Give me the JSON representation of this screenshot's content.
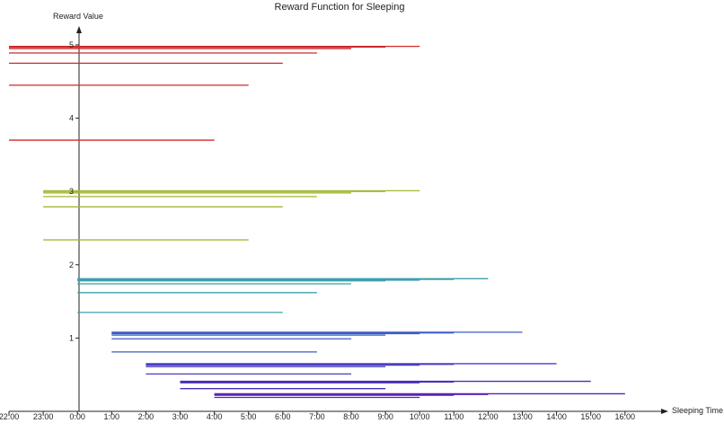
{
  "chart_data": {
    "type": "line",
    "title": "Reward Function for Sleeping",
    "xlabel": "Sleeping Time",
    "ylabel": "Reward Value",
    "xlim": [
      "22:00",
      "16:00"
    ],
    "ylim": [
      0,
      5
    ],
    "x_ticks": [
      "22:00",
      "23:00",
      "0:00",
      "1:00",
      "2:00",
      "3:00",
      "4:00",
      "5:00",
      "6:00",
      "7:00",
      "8:00",
      "9:00",
      "10:00",
      "11:00",
      "12:00",
      "13:00",
      "14:00",
      "15:00",
      "16:00"
    ],
    "y_ticks": [
      "1",
      "2",
      "3",
      "4",
      "5"
    ],
    "grid": false,
    "segment_groups": [
      {
        "start": "22:00",
        "color": "#cc2a2a",
        "segments": [
          {
            "end": "10:00",
            "value": 4.98
          },
          {
            "end": "9:00",
            "value": 4.97
          },
          {
            "end": "8:00",
            "value": 4.95
          },
          {
            "end": "7:00",
            "value": 4.89
          },
          {
            "end": "6:00",
            "value": 4.75
          },
          {
            "end": "5:00",
            "value": 4.45
          },
          {
            "end": "4:00",
            "value": 3.7
          }
        ]
      },
      {
        "start": "23:00",
        "color": "#a6b732",
        "segments": [
          {
            "end": "10:00",
            "value": 3.01
          },
          {
            "end": "9:00",
            "value": 3.0
          },
          {
            "end": "8:00",
            "value": 2.98
          },
          {
            "end": "7:00",
            "value": 2.93
          },
          {
            "end": "6:00",
            "value": 2.79
          },
          {
            "end": "5:00",
            "value": 2.34
          }
        ]
      },
      {
        "start": "0:00",
        "color": "#3f9fb0",
        "segments": [
          {
            "end": "12:00",
            "value": 1.81
          },
          {
            "end": "11:00",
            "value": 1.8
          },
          {
            "end": "10:00",
            "value": 1.79
          },
          {
            "end": "9:00",
            "value": 1.78
          },
          {
            "end": "8:00",
            "value": 1.74
          },
          {
            "end": "7:00",
            "value": 1.62
          },
          {
            "end": "6:00",
            "value": 1.35
          }
        ]
      },
      {
        "start": "1:00",
        "color": "#3b5cc4",
        "segments": [
          {
            "end": "13:00",
            "value": 1.08
          },
          {
            "end": "11:00",
            "value": 1.07
          },
          {
            "end": "10:00",
            "value": 1.06
          },
          {
            "end": "9:00",
            "value": 1.04
          },
          {
            "end": "8:00",
            "value": 0.99
          },
          {
            "end": "7:00",
            "value": 0.81
          }
        ]
      },
      {
        "start": "2:00",
        "color": "#4b3ec2",
        "segments": [
          {
            "end": "14:00",
            "value": 0.65
          },
          {
            "end": "11:00",
            "value": 0.64
          },
          {
            "end": "10:00",
            "value": 0.63
          },
          {
            "end": "9:00",
            "value": 0.61
          },
          {
            "end": "8:00",
            "value": 0.51
          }
        ]
      },
      {
        "start": "3:00",
        "color": "#4a2eb8",
        "segments": [
          {
            "end": "15:00",
            "value": 0.41
          },
          {
            "end": "11:00",
            "value": 0.4
          },
          {
            "end": "10:00",
            "value": 0.39
          },
          {
            "end": "9:00",
            "value": 0.31
          }
        ]
      },
      {
        "start": "4:00",
        "color": "#5a22b4",
        "segments": [
          {
            "end": "16:00",
            "value": 0.24
          },
          {
            "end": "12:00",
            "value": 0.23
          },
          {
            "end": "11:00",
            "value": 0.22
          },
          {
            "end": "10:00",
            "value": 0.19
          }
        ]
      }
    ]
  }
}
